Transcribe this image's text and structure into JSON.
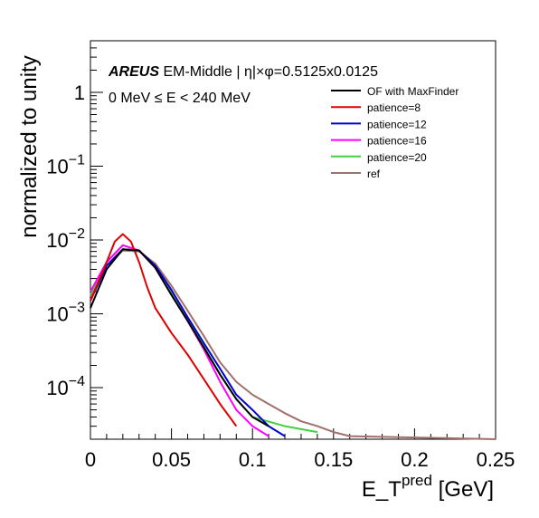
{
  "chart_data": {
    "type": "line",
    "xlabel_main": "E_T",
    "xlabel_sup": "pred",
    "xlabel_unit": " [GeV]",
    "ylabel": "normalized to unity",
    "xlim": [
      0,
      0.25
    ],
    "ylim": [
      2e-05,
      5
    ],
    "yscale": "log",
    "grid": false,
    "legend_position": "top-right",
    "x_ticks": [
      0,
      0.05,
      0.1,
      0.15,
      0.2,
      0.25
    ],
    "x_tick_labels": [
      "0",
      "0.05",
      "0.1",
      "0.15",
      "0.2",
      "0.25"
    ],
    "y_ticks": [
      {
        "value": 0.0001,
        "base": "10",
        "exp": "−4"
      },
      {
        "value": 0.001,
        "base": "10",
        "exp": "−3"
      },
      {
        "value": 0.01,
        "base": "10",
        "exp": "−2"
      },
      {
        "value": 0.1,
        "base": "10",
        "exp": "−1"
      },
      {
        "value": 1,
        "base": "1",
        "exp": ""
      }
    ],
    "annotation": {
      "brand": "AREUS",
      "title": " EM-Middle | η|×φ=0.5125x0.0125",
      "range": "0 MeV  ≤ E < 240 MeV"
    },
    "series": [
      {
        "name": "OF with MaxFinder",
        "color": "#000000",
        "x": [
          0.0,
          0.01,
          0.02,
          0.03,
          0.04,
          0.05,
          0.06,
          0.07,
          0.08,
          0.09,
          0.1,
          0.11
        ],
        "y": [
          0.0012,
          0.004,
          0.0075,
          0.0072,
          0.0042,
          0.0018,
          0.0008,
          0.00035,
          0.00015,
          7e-05,
          4e-05,
          3e-05
        ]
      },
      {
        "name": "patience=8",
        "color": "#e00000",
        "x": [
          0.0,
          0.01,
          0.015,
          0.02,
          0.025,
          0.03,
          0.035,
          0.04,
          0.05,
          0.06,
          0.07,
          0.08,
          0.09
        ],
        "y": [
          0.0015,
          0.005,
          0.0095,
          0.012,
          0.0095,
          0.005,
          0.0023,
          0.0012,
          0.00055,
          0.00028,
          0.00013,
          6e-05,
          3e-05
        ]
      },
      {
        "name": "patience=12",
        "color": "#0000d0",
        "x": [
          0.0,
          0.01,
          0.02,
          0.03,
          0.04,
          0.05,
          0.06,
          0.07,
          0.08,
          0.09,
          0.1,
          0.11,
          0.12
        ],
        "y": [
          0.0015,
          0.0045,
          0.0075,
          0.0072,
          0.0045,
          0.0021,
          0.0009,
          0.0004,
          0.00018,
          8e-05,
          5e-05,
          3e-05,
          2.2e-05
        ]
      },
      {
        "name": "patience=16",
        "color": "#ff00ff",
        "x": [
          0.0,
          0.01,
          0.02,
          0.03,
          0.04,
          0.05,
          0.06,
          0.07,
          0.08,
          0.09,
          0.1,
          0.11
        ],
        "y": [
          0.002,
          0.005,
          0.0085,
          0.0072,
          0.0042,
          0.0018,
          0.0008,
          0.00033,
          0.00012,
          5e-05,
          3e-05,
          2.2e-05
        ]
      },
      {
        "name": "patience=20",
        "color": "#40d040",
        "x": [
          0.0,
          0.01,
          0.02,
          0.03,
          0.04,
          0.05,
          0.06,
          0.07,
          0.08,
          0.09,
          0.1,
          0.12,
          0.14
        ],
        "y": [
          0.0018,
          0.005,
          0.0085,
          0.0072,
          0.0043,
          0.002,
          0.00085,
          0.00036,
          0.00015,
          7e-05,
          4e-05,
          3e-05,
          2.5e-05
        ]
      },
      {
        "name": "ref",
        "color": "#a0706c",
        "x": [
          0.0,
          0.01,
          0.02,
          0.03,
          0.04,
          0.05,
          0.06,
          0.07,
          0.08,
          0.09,
          0.1,
          0.11,
          0.12,
          0.13,
          0.14,
          0.15,
          0.16,
          0.25
        ],
        "y": [
          0.0017,
          0.0045,
          0.0072,
          0.007,
          0.0048,
          0.0024,
          0.0011,
          0.0005,
          0.00022,
          0.00012,
          8e-05,
          6e-05,
          4.5e-05,
          3.5e-05,
          3e-05,
          2.5e-05,
          2.2e-05,
          2e-05
        ]
      }
    ]
  }
}
